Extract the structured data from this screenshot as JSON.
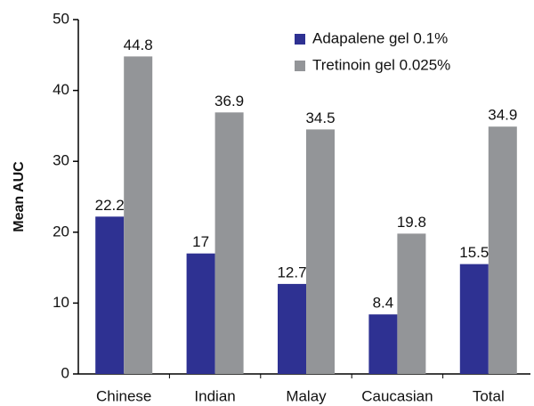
{
  "chart_data": {
    "type": "bar",
    "ylabel": "Mean AUC",
    "categories": [
      "Chinese",
      "Indian",
      "Malay",
      "Caucasian",
      "Total"
    ],
    "series": [
      {
        "name": "Adapalene gel 0.1%",
        "color": "#2e3192",
        "values": [
          22.2,
          17,
          12.7,
          8.4,
          15.5
        ]
      },
      {
        "name": "Tretinoin gel 0.025%",
        "color": "#939598",
        "values": [
          44.8,
          36.9,
          34.5,
          19.8,
          34.9
        ]
      }
    ],
    "ylim": [
      0,
      50
    ],
    "yticks": [
      0,
      10,
      20,
      30,
      40,
      50
    ],
    "grid": false,
    "legend": "upper right"
  }
}
